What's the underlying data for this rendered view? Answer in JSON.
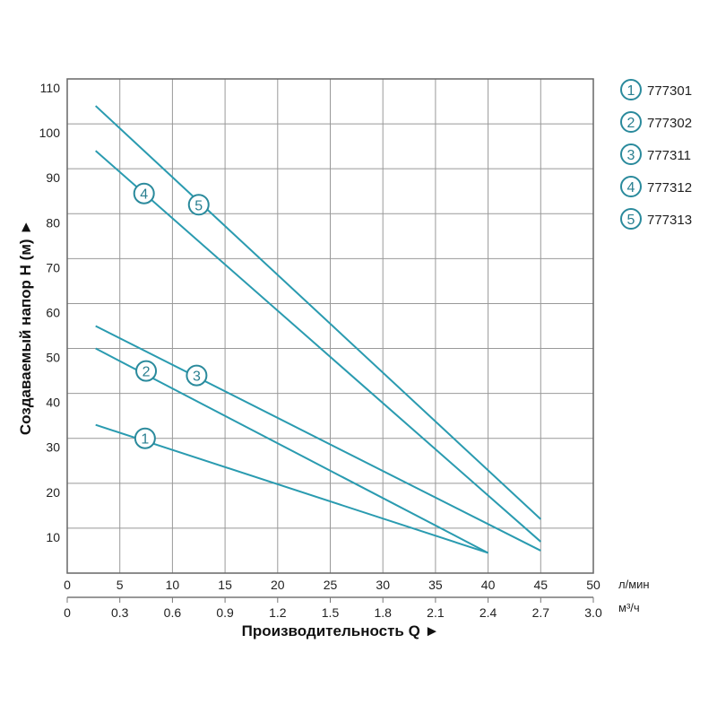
{
  "chart_data": {
    "type": "line",
    "ylabel": "Создаваемый напор H (м) ►",
    "xlabel": "Производительность Q ►",
    "x_unit_primary": "л/мин",
    "x_unit_secondary": "м³/ч",
    "xlim": [
      0,
      50
    ],
    "ylim": [
      0,
      110
    ],
    "grid": true,
    "x_ticks": [
      "0",
      "5",
      "10",
      "15",
      "20",
      "25",
      "30",
      "35",
      "40",
      "45",
      "50"
    ],
    "x_ticks_secondary": [
      "0",
      "0.3",
      "0.6",
      "0.9",
      "1.2",
      "1.5",
      "1.8",
      "2.1",
      "2.4",
      "2.7",
      "3.0"
    ],
    "y_ticks": [
      "10",
      "20",
      "30",
      "40",
      "50",
      "60",
      "70",
      "80",
      "90",
      "100",
      "110"
    ],
    "legend_position": "right",
    "line_color": "#2a9bb0",
    "marker_color": "#2a8a9c",
    "series": [
      {
        "name": "777301",
        "marker": "1",
        "x": [
          2.7,
          40
        ],
        "y": [
          33,
          4.5
        ],
        "marker_at": [
          7.4,
          30
        ]
      },
      {
        "name": "777302",
        "marker": "2",
        "x": [
          2.7,
          40
        ],
        "y": [
          50,
          4.5
        ],
        "marker_at": [
          7.5,
          45
        ]
      },
      {
        "name": "777311",
        "marker": "3",
        "x": [
          2.7,
          45
        ],
        "y": [
          55,
          5
        ],
        "marker_at": [
          12.3,
          44
        ]
      },
      {
        "name": "777312",
        "marker": "4",
        "x": [
          2.7,
          45
        ],
        "y": [
          94,
          7
        ],
        "marker_at": [
          7.3,
          84.5
        ]
      },
      {
        "name": "777313",
        "marker": "5",
        "x": [
          2.7,
          45
        ],
        "y": [
          104,
          12
        ],
        "marker_at": [
          12.5,
          82
        ]
      }
    ]
  }
}
